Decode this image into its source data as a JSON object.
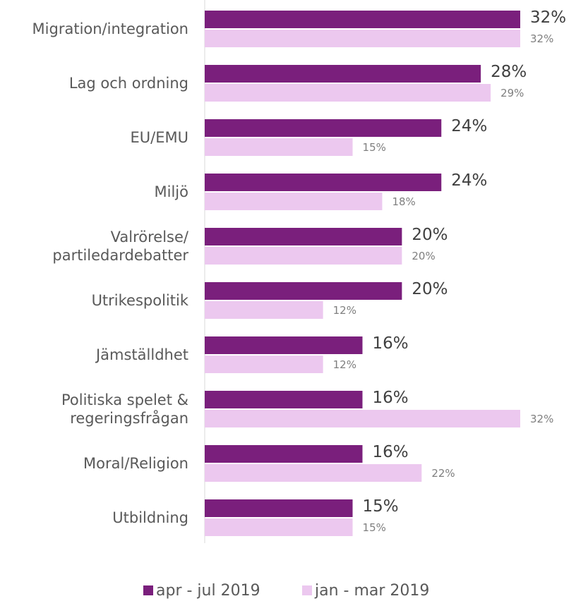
{
  "chart_data": {
    "type": "bar",
    "orientation": "horizontal",
    "categories": [
      "Migration/integration",
      "Lag och ordning",
      "EU/EMU",
      "Miljö",
      "Valrörelse/\npartiledardebatter",
      "Utrikespolitik",
      "Jämställdhet",
      "Politiska spelet &\nregeringsfrågan",
      "Moral/Religion",
      "Utbildning"
    ],
    "series": [
      {
        "name": "apr - jul 2019",
        "color": "#7a1f7c",
        "values": [
          32,
          28,
          24,
          24,
          20,
          20,
          16,
          16,
          16,
          15
        ],
        "value_labels": [
          "32%",
          "28%",
          "24%",
          "24%",
          "20%",
          "20%",
          "16%",
          "16%",
          "16%",
          "15%"
        ]
      },
      {
        "name": "jan - mar 2019",
        "color": "#ecc8ef",
        "values": [
          32,
          29,
          15,
          18,
          20,
          12,
          12,
          32,
          22,
          15
        ],
        "value_labels": [
          "32%",
          "29%",
          "15%",
          "18%",
          "20%",
          "12%",
          "12%",
          "32%",
          "22%",
          "15%"
        ]
      }
    ],
    "legend": "bottom"
  }
}
